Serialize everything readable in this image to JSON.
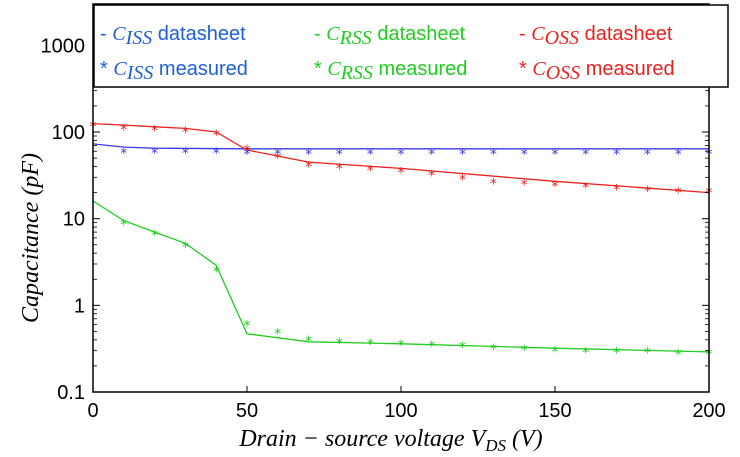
{
  "chart_data": {
    "type": "line",
    "title": "",
    "xlabel": "Drain − source voltage V_DS (V)",
    "ylabel": "Capacitance (pF)",
    "xlim": [
      0,
      200
    ],
    "ylim": [
      0.1,
      3000
    ],
    "yscale": "log",
    "grid": false,
    "legend_placement": "top",
    "x_ticks": [
      "0",
      "50",
      "100",
      "150",
      "200"
    ],
    "y_ticks": [
      "0.1",
      "1",
      "10",
      "100",
      "1000"
    ],
    "legend": [
      {
        "marker": "-",
        "symbol": "C",
        "sub": "ISS",
        "text": " datasheet",
        "color": "#1f5fd6"
      },
      {
        "marker": "-",
        "symbol": "C",
        "sub": "RSS",
        "text": " datasheet",
        "color": "#22cc22"
      },
      {
        "marker": "-",
        "symbol": "C",
        "sub": "OSS",
        "text": " datasheet",
        "color": "#e8231f"
      },
      {
        "marker": "*",
        "symbol": "C",
        "sub": "ISS",
        "text": " measured",
        "color": "#1f5fd6"
      },
      {
        "marker": "*",
        "symbol": "C",
        "sub": "RSS",
        "text": " measured",
        "color": "#22cc22"
      },
      {
        "marker": "*",
        "symbol": "C",
        "sub": "OSS",
        "text": " measured",
        "color": "#e8231f"
      }
    ],
    "series": [
      {
        "id": "ciss-datasheet",
        "style": "line",
        "color": "#3a3ae8",
        "x": [
          0,
          10,
          20,
          50,
          100,
          150,
          200
        ],
        "y": [
          73,
          67,
          65,
          64,
          64,
          64,
          64
        ]
      },
      {
        "id": "crss-datasheet",
        "style": "line",
        "color": "#22cc22",
        "x": [
          0,
          10,
          20,
          30,
          40,
          50,
          70,
          100,
          150,
          200
        ],
        "y": [
          16,
          9.5,
          7.0,
          5.2,
          2.9,
          0.47,
          0.38,
          0.36,
          0.32,
          0.29
        ]
      },
      {
        "id": "coss-datasheet",
        "style": "line",
        "color": "#e8231f",
        "x": [
          0,
          10,
          20,
          30,
          40,
          50,
          70,
          100,
          150,
          200
        ],
        "y": [
          125,
          120,
          115,
          110,
          100,
          62,
          45,
          38,
          27,
          20
        ]
      },
      {
        "id": "ciss-measured",
        "style": "marker",
        "color": "#3a3ae8",
        "x": [
          10,
          20,
          30,
          40,
          50,
          60,
          70,
          80,
          90,
          100,
          110,
          120,
          130,
          140,
          150,
          160,
          170,
          180,
          190,
          200
        ],
        "y": [
          60,
          60,
          60,
          60,
          59,
          59,
          59,
          59,
          59,
          59,
          59,
          59,
          59,
          59,
          59,
          59,
          59,
          59,
          59,
          59
        ]
      },
      {
        "id": "crss-measured",
        "style": "marker",
        "color": "#22cc22",
        "x": [
          10,
          20,
          30,
          40,
          50,
          60,
          70,
          80,
          90,
          100,
          110,
          120,
          130,
          140,
          150,
          160,
          170,
          180,
          190,
          200
        ],
        "y": [
          9,
          6.8,
          5.0,
          2.6,
          0.62,
          0.5,
          0.41,
          0.39,
          0.38,
          0.37,
          0.36,
          0.35,
          0.33,
          0.32,
          0.31,
          0.3,
          0.3,
          0.3,
          0.29,
          0.29
        ]
      },
      {
        "id": "coss-measured",
        "style": "marker",
        "color": "#e8231f",
        "x": [
          0,
          10,
          20,
          30,
          40,
          50,
          60,
          70,
          80,
          90,
          100,
          110,
          120,
          130,
          140,
          150,
          160,
          170,
          180,
          190,
          200
        ],
        "y": [
          122,
          112,
          110,
          105,
          98,
          65,
          53,
          42,
          40,
          38,
          36,
          33,
          30,
          27,
          26,
          25,
          24,
          23,
          22,
          21,
          21
        ]
      }
    ]
  }
}
